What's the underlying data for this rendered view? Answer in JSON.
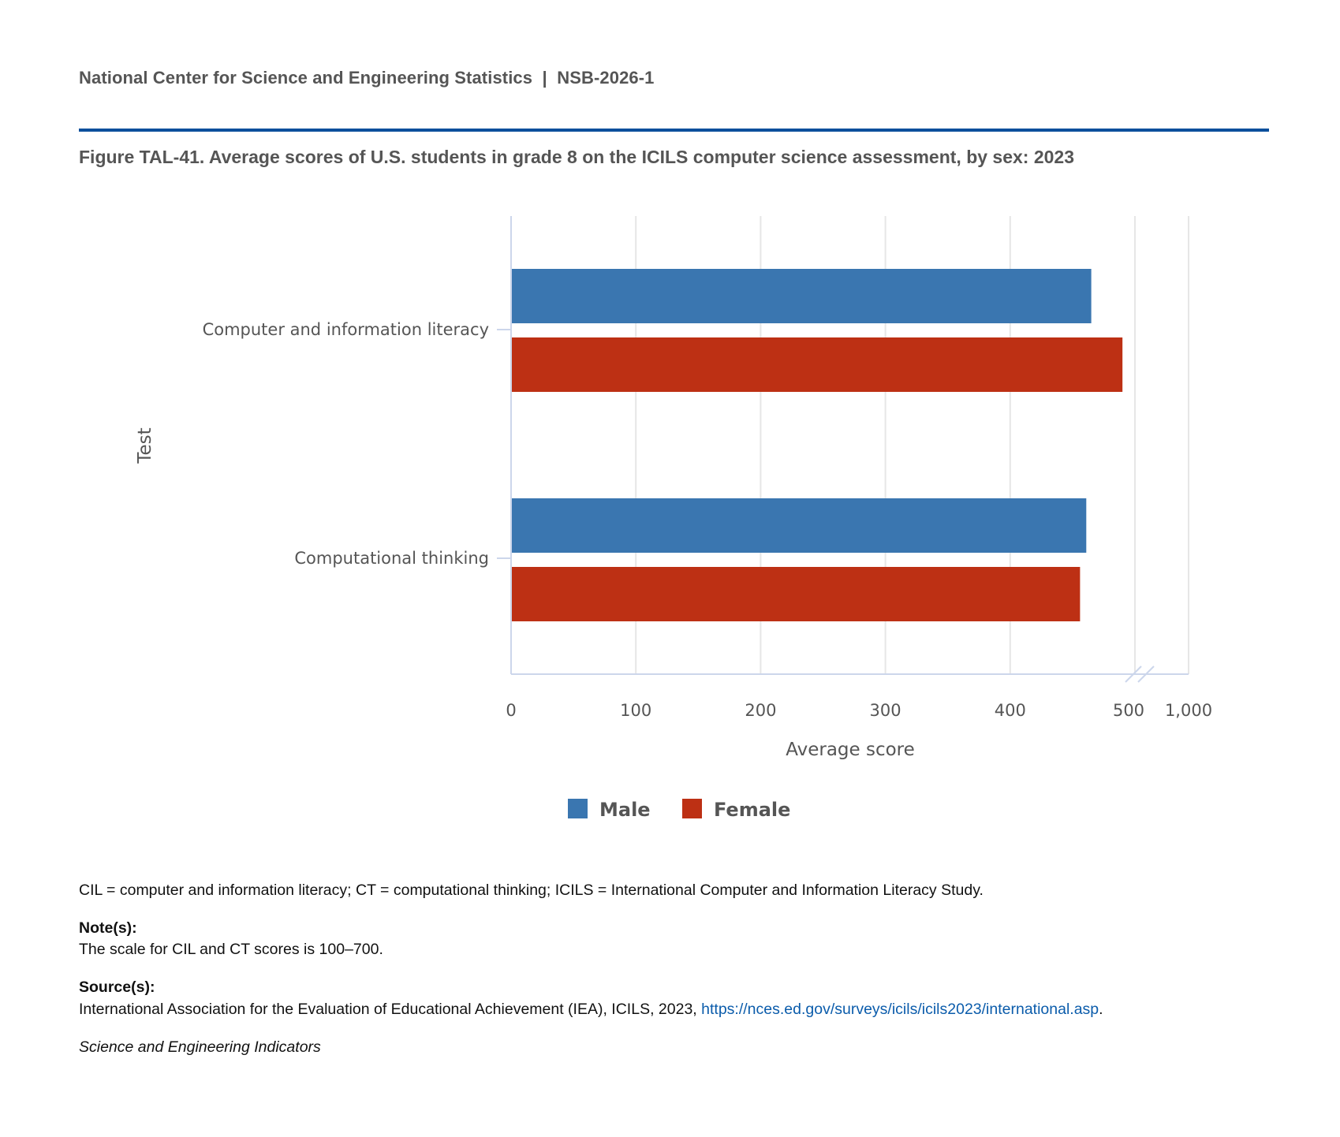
{
  "header": {
    "organization": "National Center for Science and Engineering Statistics",
    "separator": "|",
    "report_id": "NSB-2026-1"
  },
  "figure_title": "Figure TAL-41. Average scores of U.S. students in grade 8 on the ICILS computer science assessment, by sex: 2023",
  "chart_data": {
    "type": "bar",
    "orientation": "horizontal",
    "title": "Figure TAL-41. Average scores of U.S. students in grade 8 on the ICILS computer science assessment, by sex: 2023",
    "categories": [
      "Computer and information literacy",
      "Computational thinking"
    ],
    "series": [
      {
        "name": "Male",
        "color": "#3a76b0",
        "values": [
          465,
          461
        ]
      },
      {
        "name": "Female",
        "color": "#bd3014",
        "values": [
          490,
          456
        ]
      }
    ],
    "xlabel": "Average score",
    "ylabel": "Test",
    "xlim": [
      0,
      1000
    ],
    "axis_break": [
      500,
      1000
    ],
    "x_ticks": [
      "0",
      "100",
      "200",
      "300",
      "400",
      "500",
      "1,000"
    ],
    "grid": true,
    "legend_position": "bottom-center"
  },
  "footer": {
    "abbreviations": "CIL = computer and information literacy; CT = computational thinking; ICILS = International Computer and Information Literacy Study.",
    "notes_label": "Note(s):",
    "notes": "The scale for CIL and CT scores is 100–700.",
    "sources_label": "Source(s):",
    "sources_text": "International Association for the Evaluation of Educational Achievement (IEA), ICILS, 2023, ",
    "sources_link": "https://nces.ed.gov/surveys/icils/icils2023/international.asp",
    "sources_end": ".",
    "publication": "Science and Engineering Indicators"
  }
}
